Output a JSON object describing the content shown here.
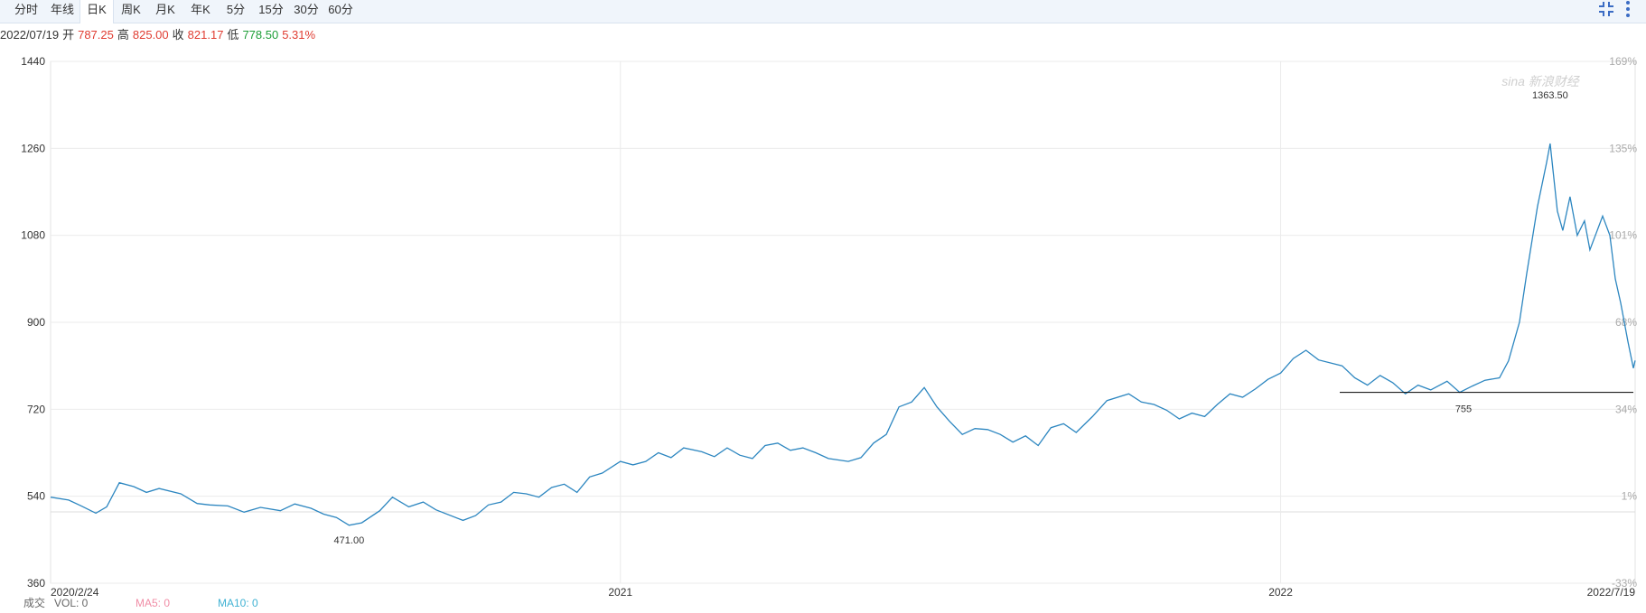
{
  "tabs": [
    {
      "label": "分时",
      "active": false
    },
    {
      "label": "年线",
      "active": false
    },
    {
      "label": "日K",
      "active": true
    },
    {
      "label": "周K",
      "active": false
    },
    {
      "label": "月K",
      "active": false
    },
    {
      "label": "年K",
      "active": false
    },
    {
      "label": "5分",
      "active": false
    },
    {
      "label": "15分",
      "active": false
    },
    {
      "label": "30分",
      "active": false
    },
    {
      "label": "60分",
      "active": false
    }
  ],
  "icons": {
    "compress": "compress-icon",
    "more": "more-vertical-icon"
  },
  "info": {
    "date": "2022/07/19",
    "open_label": "开",
    "open": "787.25",
    "high_label": "高",
    "high": "825.00",
    "close_label": "收",
    "close": "821.17",
    "low_label": "低",
    "low": "778.50",
    "change": "5.31%"
  },
  "colors": {
    "line": "#2c86c0",
    "up": "#e03c31",
    "down": "#1c9e37",
    "grid": "#ebebeb",
    "ma5": "#f08da6",
    "ma10": "#40b2d3"
  },
  "watermark": "sina 新浪财经",
  "bottom": {
    "vol_prefix": "成交",
    "vol": "VOL: 0",
    "ma5": "MA5: 0",
    "ma10": "MA10: 0"
  },
  "chart_data": {
    "type": "line",
    "y_ticks": [
      "1440",
      "1260",
      "1080",
      "900",
      "720",
      "540",
      "360"
    ],
    "pct_ticks": [
      "169%",
      "135%",
      "101%",
      "68%",
      "34%",
      "1%",
      "-33%"
    ],
    "x_ticks": [
      "2020/2/24",
      "2021",
      "2022",
      "2022/7/19"
    ],
    "ylim": [
      360,
      1440
    ],
    "x_range": [
      "2020-02-24",
      "2022-07-19"
    ],
    "max_label": "1363.50",
    "min_label": "471.00",
    "ref_label": "755",
    "ref_value": 755,
    "points": [
      [
        "2020-02-24",
        538
      ],
      [
        "2020-03-05",
        532
      ],
      [
        "2020-03-12",
        520
      ],
      [
        "2020-03-20",
        505
      ],
      [
        "2020-03-26",
        518
      ],
      [
        "2020-04-02",
        568
      ],
      [
        "2020-04-10",
        560
      ],
      [
        "2020-04-17",
        548
      ],
      [
        "2020-04-24",
        556
      ],
      [
        "2020-05-06",
        545
      ],
      [
        "2020-05-15",
        525
      ],
      [
        "2020-05-22",
        522
      ],
      [
        "2020-06-01",
        520
      ],
      [
        "2020-06-10",
        507
      ],
      [
        "2020-06-19",
        517
      ],
      [
        "2020-06-30",
        510
      ],
      [
        "2020-07-08",
        524
      ],
      [
        "2020-07-17",
        515
      ],
      [
        "2020-07-24",
        503
      ],
      [
        "2020-07-31",
        496
      ],
      [
        "2020-08-07",
        480
      ],
      [
        "2020-08-14",
        485
      ],
      [
        "2020-08-24",
        510
      ],
      [
        "2020-08-31",
        538
      ],
      [
        "2020-09-09",
        518
      ],
      [
        "2020-09-17",
        528
      ],
      [
        "2020-09-24",
        512
      ],
      [
        "2020-10-09",
        490
      ],
      [
        "2020-10-16",
        500
      ],
      [
        "2020-10-23",
        522
      ],
      [
        "2020-10-30",
        528
      ],
      [
        "2020-11-06",
        548
      ],
      [
        "2020-11-13",
        545
      ],
      [
        "2020-11-20",
        538
      ],
      [
        "2020-11-27",
        558
      ],
      [
        "2020-12-04",
        565
      ],
      [
        "2020-12-11",
        548
      ],
      [
        "2020-12-18",
        580
      ],
      [
        "2020-12-25",
        588
      ],
      [
        "2021-01-04",
        612
      ],
      [
        "2021-01-11",
        605
      ],
      [
        "2021-01-18",
        612
      ],
      [
        "2021-01-25",
        630
      ],
      [
        "2021-02-01",
        620
      ],
      [
        "2021-02-08",
        640
      ],
      [
        "2021-02-18",
        632
      ],
      [
        "2021-02-25",
        622
      ],
      [
        "2021-03-04",
        640
      ],
      [
        "2021-03-11",
        625
      ],
      [
        "2021-03-18",
        618
      ],
      [
        "2021-03-25",
        645
      ],
      [
        "2021-04-01",
        650
      ],
      [
        "2021-04-08",
        635
      ],
      [
        "2021-04-15",
        640
      ],
      [
        "2021-04-22",
        630
      ],
      [
        "2021-04-29",
        618
      ],
      [
        "2021-05-10",
        612
      ],
      [
        "2021-05-17",
        620
      ],
      [
        "2021-05-24",
        650
      ],
      [
        "2021-05-31",
        668
      ],
      [
        "2021-06-07",
        725
      ],
      [
        "2021-06-14",
        735
      ],
      [
        "2021-06-21",
        765
      ],
      [
        "2021-06-28",
        725
      ],
      [
        "2021-07-05",
        695
      ],
      [
        "2021-07-12",
        668
      ],
      [
        "2021-07-19",
        680
      ],
      [
        "2021-07-26",
        678
      ],
      [
        "2021-08-02",
        668
      ],
      [
        "2021-08-09",
        652
      ],
      [
        "2021-08-16",
        665
      ],
      [
        "2021-08-23",
        645
      ],
      [
        "2021-08-30",
        682
      ],
      [
        "2021-09-06",
        690
      ],
      [
        "2021-09-13",
        672
      ],
      [
        "2021-09-22",
        705
      ],
      [
        "2021-09-30",
        738
      ],
      [
        "2021-10-12",
        752
      ],
      [
        "2021-10-19",
        735
      ],
      [
        "2021-10-26",
        730
      ],
      [
        "2021-11-02",
        718
      ],
      [
        "2021-11-09",
        700
      ],
      [
        "2021-11-16",
        712
      ],
      [
        "2021-11-23",
        705
      ],
      [
        "2021-11-30",
        730
      ],
      [
        "2021-12-07",
        752
      ],
      [
        "2021-12-14",
        745
      ],
      [
        "2021-12-21",
        762
      ],
      [
        "2021-12-28",
        782
      ],
      [
        "2022-01-04",
        795
      ],
      [
        "2022-01-11",
        825
      ],
      [
        "2022-01-18",
        842
      ],
      [
        "2022-01-25",
        822
      ],
      [
        "2022-02-07",
        810
      ],
      [
        "2022-02-14",
        785
      ],
      [
        "2022-02-21",
        770
      ],
      [
        "2022-02-28",
        790
      ],
      [
        "2022-03-07",
        775
      ],
      [
        "2022-03-14",
        752
      ],
      [
        "2022-03-21",
        770
      ],
      [
        "2022-03-28",
        760
      ],
      [
        "2022-04-06",
        778
      ],
      [
        "2022-04-13",
        755
      ],
      [
        "2022-04-20",
        768
      ],
      [
        "2022-04-27",
        780
      ],
      [
        "2022-05-05",
        785
      ],
      [
        "2022-05-10",
        820
      ],
      [
        "2022-05-16",
        900
      ],
      [
        "2022-05-20",
        1000
      ],
      [
        "2022-05-26",
        1140
      ],
      [
        "2022-05-31",
        1230
      ],
      [
        "2022-06-02",
        1270
      ],
      [
        "2022-06-06",
        1130
      ],
      [
        "2022-06-09",
        1090
      ],
      [
        "2022-06-13",
        1160
      ],
      [
        "2022-06-17",
        1080
      ],
      [
        "2022-06-21",
        1110
      ],
      [
        "2022-06-24",
        1050
      ],
      [
        "2022-06-28",
        1090
      ],
      [
        "2022-07-01",
        1120
      ],
      [
        "2022-07-05",
        1080
      ],
      [
        "2022-07-08",
        990
      ],
      [
        "2022-07-11",
        940
      ],
      [
        "2022-07-13",
        900
      ],
      [
        "2022-07-15",
        860
      ],
      [
        "2022-07-18",
        805
      ],
      [
        "2022-07-19",
        821
      ]
    ]
  }
}
